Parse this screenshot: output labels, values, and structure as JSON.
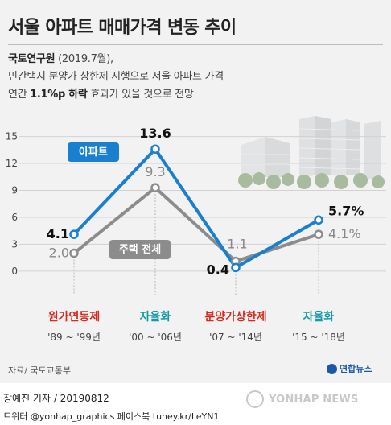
{
  "header": {
    "title": "서울 아파트 매매가격 변동 추이",
    "org": "국토연구원",
    "org_date": "(2019.7월),",
    "line2": "민간택지 분양가 상한제 시행으로 서울 아파트 가격",
    "line3_pre": "연간",
    "line3_bold": "1.1%p 하락",
    "line3_post": "효과가 있을 것으로 전망"
  },
  "chart_data": {
    "type": "line",
    "x": [
      "원가연동제",
      "자율화",
      "분양가상한제",
      "자율화"
    ],
    "x_periods": [
      "'89 ~ '99년",
      "'00 ~ '06년",
      "'07 ~ '14년",
      "'15 ~ '18년"
    ],
    "x_colors": [
      "#d9291c",
      "#139aa8",
      "#d9291c",
      "#139aa8"
    ],
    "series": [
      {
        "name": "아파트",
        "values": [
          4.1,
          13.6,
          0.4,
          5.7
        ],
        "labels": [
          "4.1",
          "13.6",
          "0.4",
          "5.7%"
        ],
        "color": "#1a7fcf"
      },
      {
        "name": "주택 전체",
        "values": [
          2.0,
          9.3,
          1.1,
          4.1
        ],
        "labels": [
          "2.0",
          "9.3",
          "1.1",
          "4.1%"
        ],
        "color": "#8c8c8c"
      }
    ],
    "y_ticks": [
      0,
      3,
      6,
      9,
      12,
      15
    ],
    "ylim": [
      -1,
      15.5
    ],
    "grid": true,
    "legend": "inline-labels"
  },
  "source": "자료/ 국토교통부",
  "brand": "연합뉴스",
  "footer": {
    "credit": "장예진 기자 / 20190812",
    "twitter": "트위터 @yonhap_graphics  페이스북 tuney.kr/LeYN1",
    "logo": "YONHAP NEWS"
  }
}
